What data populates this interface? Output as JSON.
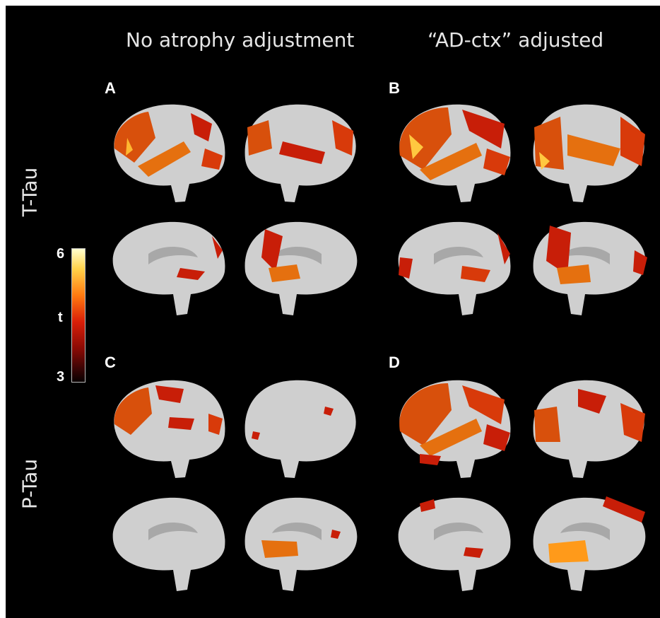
{
  "columns": {
    "left": "No atrophy adjustment",
    "right": "“AD-ctx” adjusted"
  },
  "rows": {
    "top": "T-Tau",
    "bottom": "P-Tau"
  },
  "panels": [
    "A",
    "B",
    "C",
    "D"
  ],
  "colorbar": {
    "label": "t",
    "max": "6",
    "min": "3",
    "colors": [
      "#ffffd0",
      "#ffd24a",
      "#ff7a10",
      "#d81e08",
      "#8a0a04",
      "#080000"
    ]
  },
  "colors": {
    "background": "#000000",
    "cortex": "#cfcfcf",
    "activation_high": "#ff9a1a",
    "activation_low": "#c81e08"
  }
}
